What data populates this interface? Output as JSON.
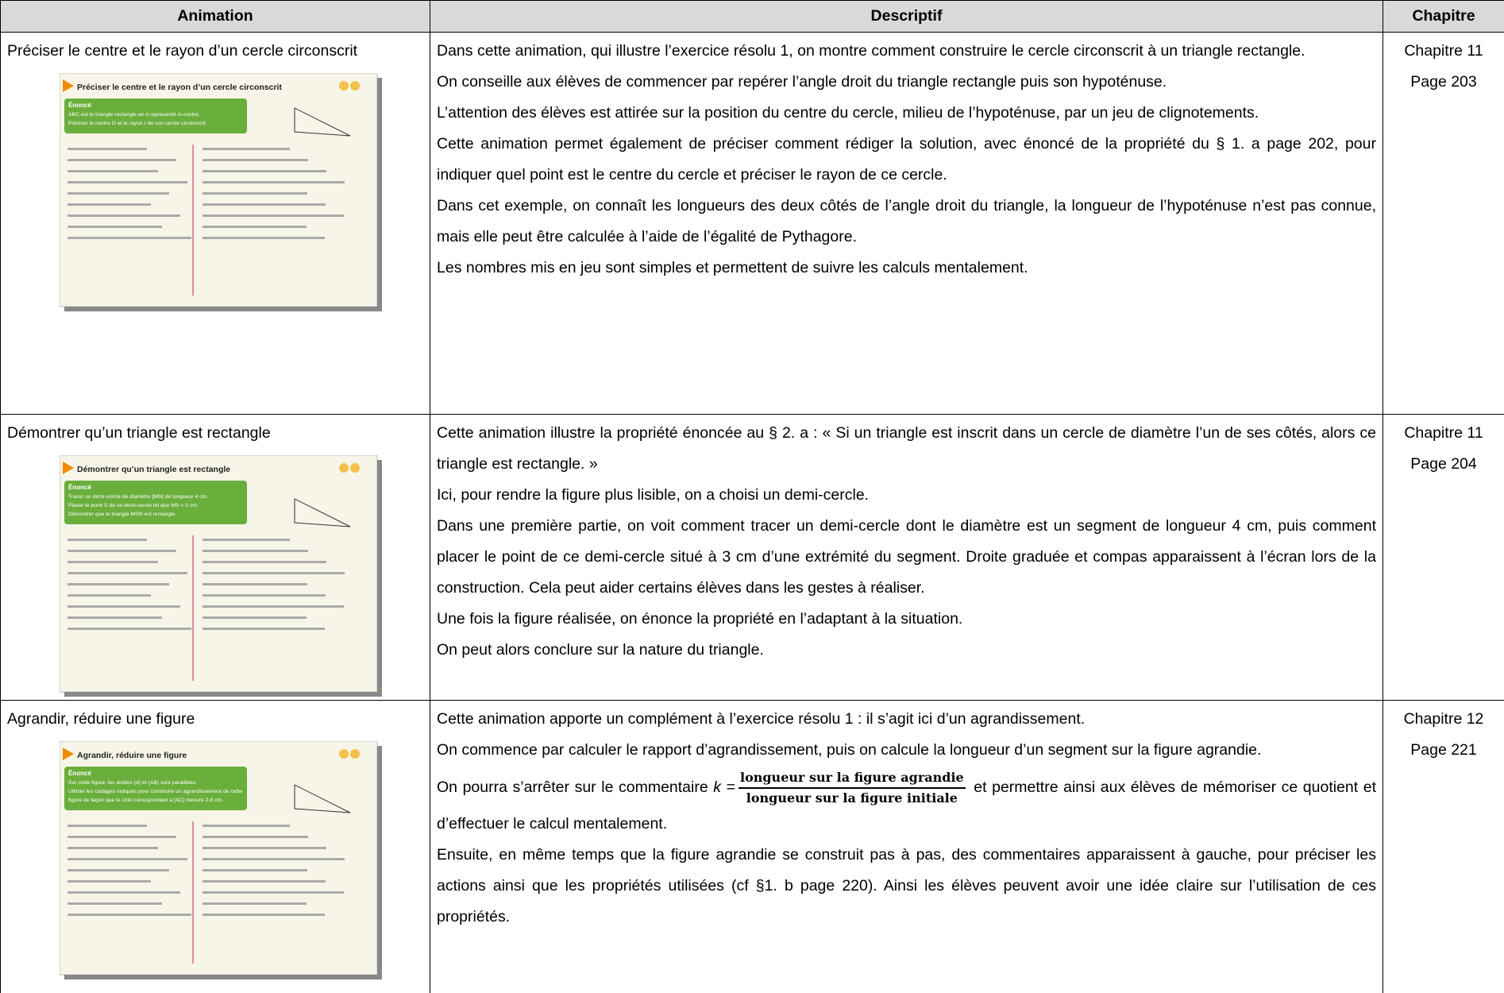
{
  "table": {
    "headers": [
      "Animation",
      "Descriptif",
      "Chapitre"
    ],
    "rows": [
      {
        "animation": "Préciser le centre et le rayon d’un cercle circonscrit",
        "thumbnail": {
          "title": "Préciser le centre et le rayon d’un cercle circonscrit",
          "heading": "Énoncé",
          "statement": [
            "ABC est le triangle rectangle en A représenté ci-contre.",
            "Préciser le centre O et le rayon r de son cercle circonscrit."
          ]
        },
        "paragraphs": [
          "Dans cette animation, qui illustre l’exercice résolu 1, on montre comment construire le cercle circonscrit à un triangle rectangle.",
          "On conseille aux élèves de commencer par repérer l’angle droit du triangle rectangle puis son hypoténuse.",
          "L’attention des élèves est attirée sur la position du centre du cercle, milieu de l’hypoténuse, par un jeu de clignotements.",
          "Cette animation permet également de préciser comment rédiger la solution, avec énoncé de la propriété du § 1. a page 202, pour indiquer quel point est le centre du cercle et préciser le rayon de ce cercle.",
          "Dans cet exemple, on connaît les longueurs des deux côtés de l’angle droit du triangle, la longueur de l’hypoténuse n’est pas connue, mais elle peut être calculée à l’aide de l’égalité de Pythagore.",
          "Les nombres mis en jeu sont simples et permettent de suivre les calculs mentalement."
        ],
        "chapter": "Chapitre 11",
        "page": "Page 203"
      },
      {
        "animation": "Démontrer qu’un triangle est rectangle",
        "thumbnail": {
          "title": "Démontrer qu’un triangle est rectangle",
          "heading": "Énoncé",
          "statement": [
            "Tracer un demi-cercle de diamètre [MN] de longueur 4 cm.",
            "Placer le point S de ce demi-cercle tel que MS = 3 cm.",
            "Démontrer que le triangle MSN est rectangle."
          ]
        },
        "paragraphs": [
          "Cette animation illustre la propriété énoncée au § 2. a : « Si un triangle est inscrit dans un cercle de diamètre l’un de ses côtés, alors ce triangle est rectangle. »",
          "Ici, pour rendre la figure plus lisible, on a choisi un demi-cercle.",
          "Dans une première partie, on voit comment tracer un demi-cercle dont le diamètre est un segment de longueur 4 cm, puis comment placer le point de ce demi-cercle situé à 3 cm d’une extrémité du segment. Droite graduée et compas apparaissent à l’écran lors de la construction. Cela peut aider certains élèves dans les gestes à réaliser.",
          "Une fois la figure réalisée, on énonce la propriété en l’adaptant à la situation.",
          "On peut alors conclure sur la nature du triangle."
        ],
        "chapter": "Chapitre 11",
        "page": "Page 204"
      },
      {
        "animation": "Agrandir, réduire une figure",
        "thumbnail": {
          "title": "Agrandir, réduire une figure",
          "heading": "Énoncé",
          "statement": [
            "Sur cette figure, les droites (d) et (AB) sont parallèles.",
            "Utiliser les codages indiqués pour construire un agrandissement de cette",
            "figure de façon que le côté correspondant à [AC] mesure 2,8 cm."
          ]
        },
        "paragraphs": [
          "Cette animation apporte un complément à l’exercice résolu 1 : il s’agit ici d’un agrandissement.",
          "On commence par calculer le rapport d’agrandissement, puis on calcule la longueur d’un segment sur la figure agrandie.",
          {
            "before": "On pourra s’arrêter sur le commentaire ",
            "variable": "k",
            "operator": "=",
            "numerator": "longueur sur la figure agrandie",
            "denominator": "longueur sur la figure initiale",
            "after": " et permettre ainsi aux élèves de mémoriser ce quotient et d’effectuer le calcul mentalement."
          },
          "Ensuite, en même temps que la figure agrandie se construit pas à pas, des commentaires apparaissent à gauche, pour préciser les actions ainsi que les propriétés utilisées (cf §1. b page 220). Ainsi les élèves peuvent avoir une idée claire sur l’utilisation de ces propriétés."
        ],
        "chapter": "Chapitre 12",
        "page": "Page 221"
      }
    ]
  }
}
